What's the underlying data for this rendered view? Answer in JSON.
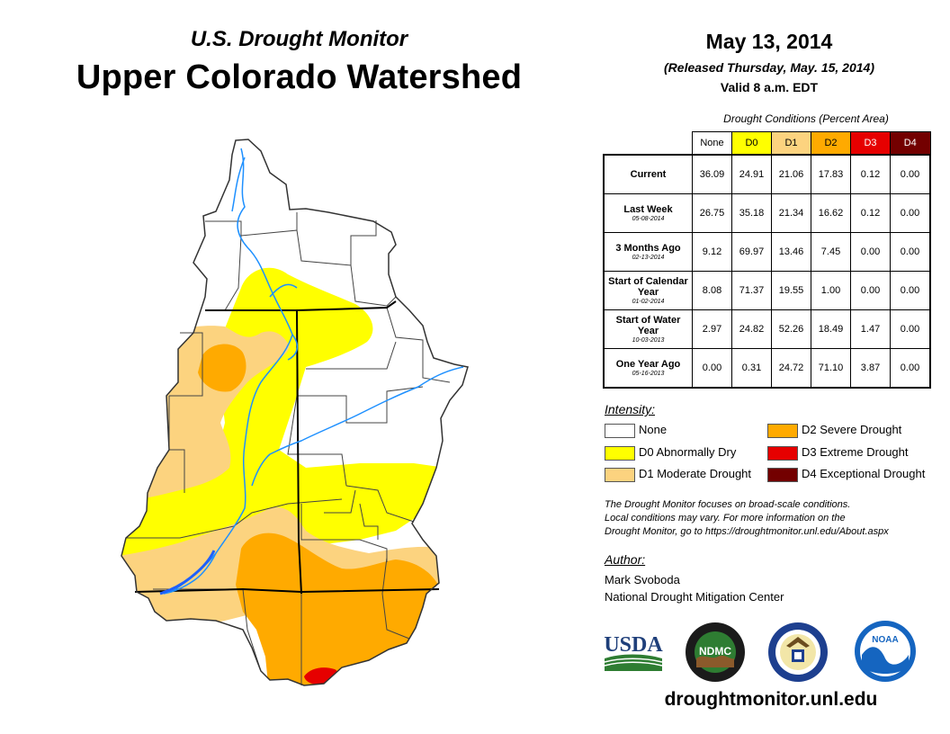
{
  "header": {
    "subtitle": "U.S. Drought Monitor",
    "title": "Upper Colorado Watershed",
    "date": "May 13, 2014",
    "released": "(Released Thursday, May. 15, 2014)",
    "valid": "Valid 8 a.m. EDT"
  },
  "table": {
    "caption": "Drought Conditions (Percent Area)",
    "columns": [
      {
        "label": "None",
        "color": "#ffffff"
      },
      {
        "label": "D0",
        "color": "#ffff00"
      },
      {
        "label": "D1",
        "color": "#fcd37f"
      },
      {
        "label": "D2",
        "color": "#ffaa00"
      },
      {
        "label": "D3",
        "color": "#e60000"
      },
      {
        "label": "D4",
        "color": "#730000"
      }
    ],
    "rows": [
      {
        "label": "Current",
        "date": "",
        "values": [
          "36.09",
          "24.91",
          "21.06",
          "17.83",
          "0.12",
          "0.00"
        ]
      },
      {
        "label": "Last Week",
        "date": "05-08-2014",
        "values": [
          "26.75",
          "35.18",
          "21.34",
          "16.62",
          "0.12",
          "0.00"
        ]
      },
      {
        "label": "3 Months Ago",
        "date": "02-13-2014",
        "values": [
          "9.12",
          "69.97",
          "13.46",
          "7.45",
          "0.00",
          "0.00"
        ]
      },
      {
        "label": "Start of Calendar Year",
        "date": "01-02-2014",
        "values": [
          "8.08",
          "71.37",
          "19.55",
          "1.00",
          "0.00",
          "0.00"
        ]
      },
      {
        "label": "Start of Water Year",
        "date": "10-03-2013",
        "values": [
          "2.97",
          "24.82",
          "52.26",
          "18.49",
          "1.47",
          "0.00"
        ]
      },
      {
        "label": "One Year Ago",
        "date": "05-16-2013",
        "values": [
          "0.00",
          "0.31",
          "24.72",
          "71.10",
          "3.87",
          "0.00"
        ]
      }
    ]
  },
  "legend": {
    "title": "Intensity:",
    "items": [
      {
        "label": "None",
        "color": "#ffffff"
      },
      {
        "label": "D0 Abnormally Dry",
        "color": "#ffff00"
      },
      {
        "label": "D1 Moderate Drought",
        "color": "#fcd37f"
      },
      {
        "label": "D2 Severe Drought",
        "color": "#ffaa00"
      },
      {
        "label": "D3 Extreme Drought",
        "color": "#e60000"
      },
      {
        "label": "D4 Exceptional Drought",
        "color": "#730000"
      }
    ]
  },
  "note": {
    "line1": "The Drought Monitor focuses on broad-scale conditions.",
    "line2": "Local conditions may vary. For more information on the",
    "line3": "Drought Monitor, go to https://droughtmonitor.unl.edu/About.aspx"
  },
  "author": {
    "title": "Author:",
    "name": "Mark Svoboda",
    "org": "National Drought Mitigation Center"
  },
  "logos": {
    "usda": "USDA",
    "ndmc": "NDMC",
    "noaa": "NOAA"
  },
  "website": "droughtmonitor.unl.edu",
  "colors": {
    "none": "#ffffff",
    "d0": "#ffff00",
    "d1": "#fcd37f",
    "d2": "#ffaa00",
    "d3": "#e60000",
    "d4": "#730000",
    "river": "#1e90ff"
  }
}
